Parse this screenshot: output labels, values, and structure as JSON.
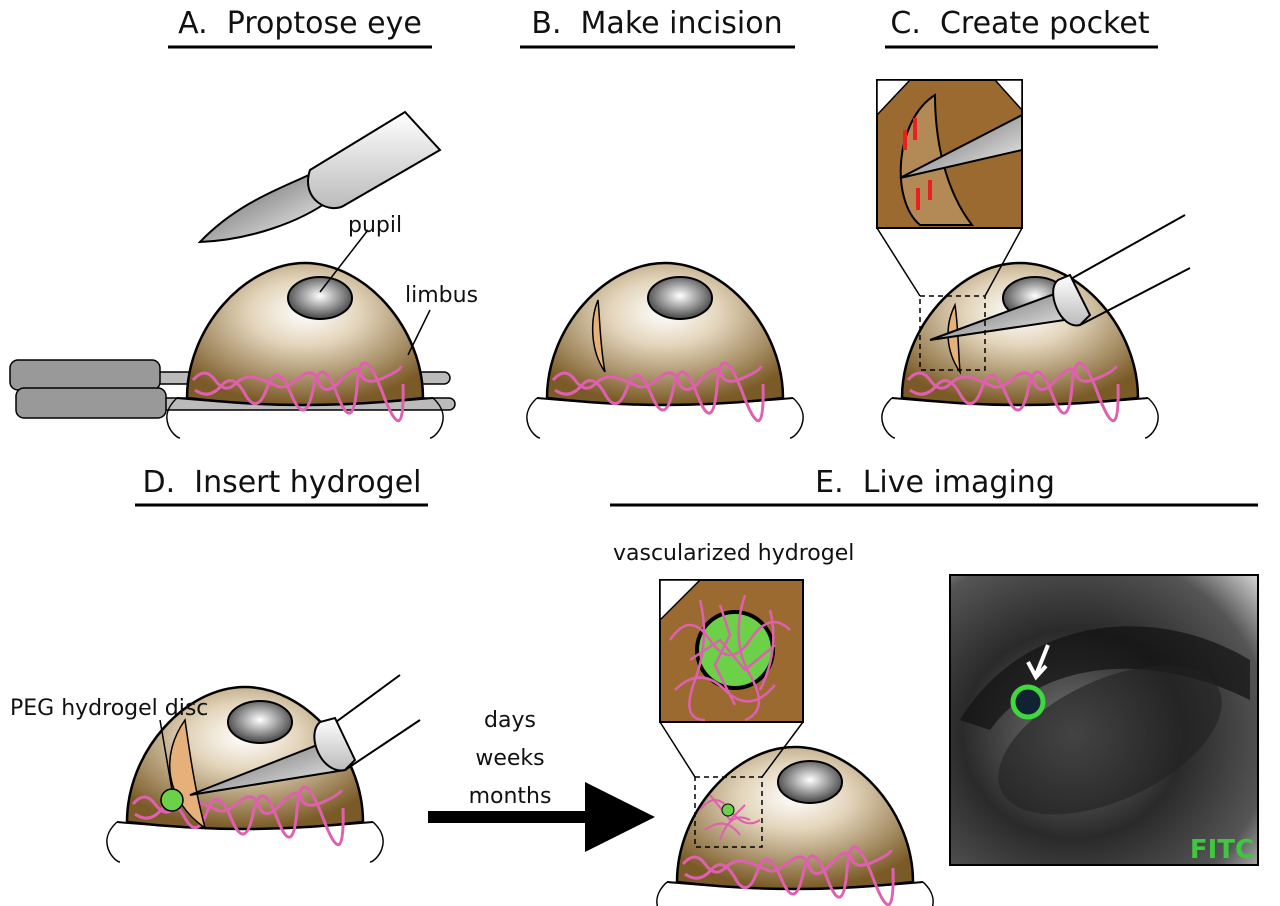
{
  "panels": [
    {
      "title": "A.  Proptose eye",
      "labels": [
        "pupil",
        "limbus"
      ]
    },
    {
      "title": "B.  Make incision"
    },
    {
      "title": "C.  Create pocket"
    },
    {
      "title": "D.  Insert hydrogel",
      "labels": [
        "PEG hydrogel disc"
      ]
    },
    {
      "title": "E.  Live imaging",
      "labels": [
        "vascularized hydrogel",
        "FITC"
      ]
    }
  ],
  "timeline": [
    "days",
    "weeks",
    "months"
  ]
}
